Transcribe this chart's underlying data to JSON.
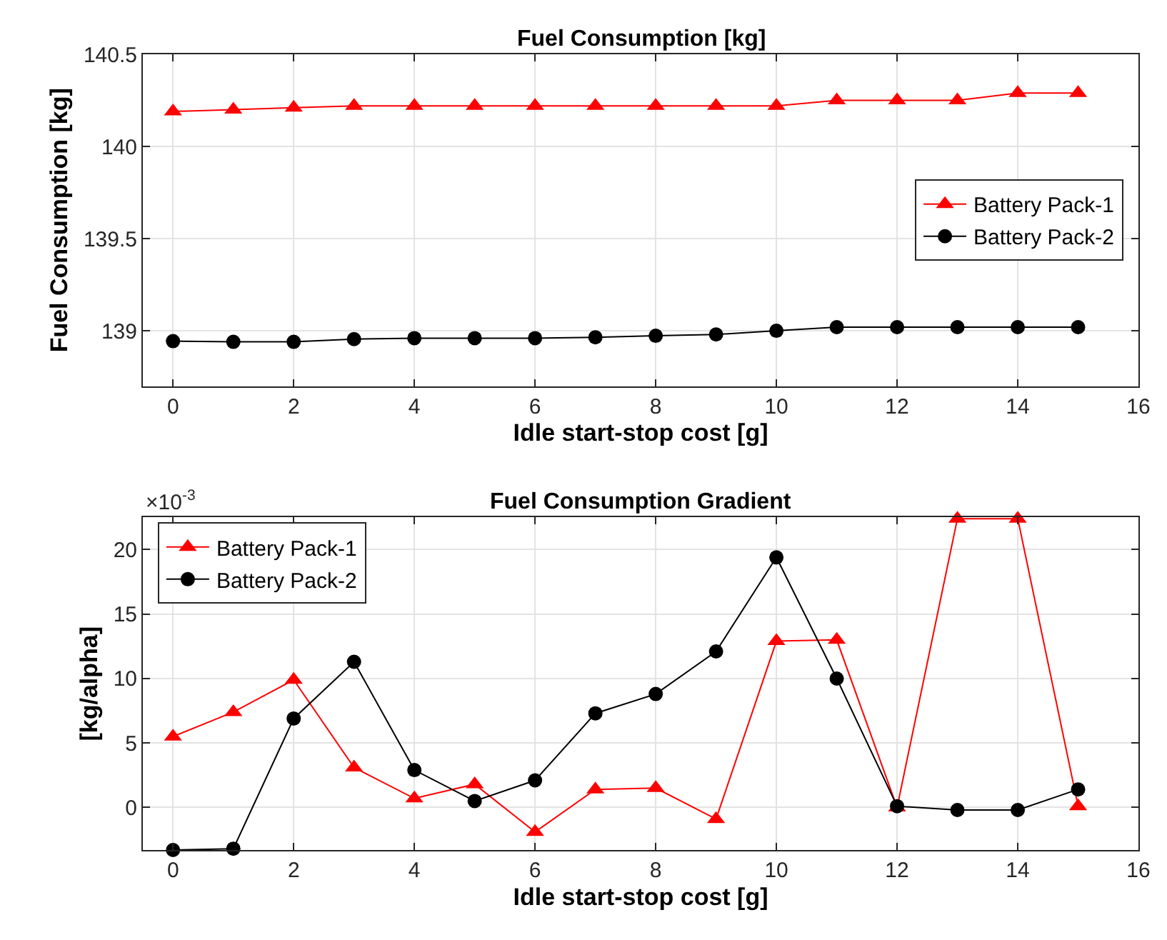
{
  "chart_data": [
    {
      "type": "line",
      "title": "Fuel Consumption [kg]",
      "xlabel": "Idle start-stop cost [g]",
      "ylabel": "Fuel Consumption [kg]",
      "x": [
        0,
        1,
        2,
        3,
        4,
        5,
        6,
        7,
        8,
        9,
        10,
        11,
        12,
        13,
        14,
        15
      ],
      "xlim": [
        -0.5,
        16
      ],
      "xticks": [
        0,
        2,
        4,
        6,
        8,
        10,
        12,
        14,
        16
      ],
      "ylim": [
        138.7,
        140.5
      ],
      "yticks": [
        139,
        139.5,
        140,
        140.5
      ],
      "grid": true,
      "legend": "right",
      "line_style": "solid",
      "series": [
        {
          "name": "Battery Pack-1",
          "color": "#ff0000",
          "marker": "triangle",
          "values": [
            140.19,
            140.2,
            140.21,
            140.22,
            140.22,
            140.22,
            140.22,
            140.22,
            140.22,
            140.22,
            140.22,
            140.25,
            140.25,
            140.25,
            140.29,
            140.29
          ]
        },
        {
          "name": "Battery Pack-2",
          "color": "#000000",
          "marker": "circle",
          "values": [
            138.944,
            138.94,
            138.94,
            138.955,
            138.96,
            138.96,
            138.96,
            138.965,
            138.973,
            138.98,
            139.0,
            139.02,
            139.02,
            139.02,
            139.02,
            139.02
          ]
        }
      ]
    },
    {
      "type": "line",
      "title": "Fuel Consumption Gradient",
      "xlabel": "Idle start-stop cost [g]",
      "ylabel": "[kg/alpha]",
      "annotations": [
        "×10$^{-3}$"
      ],
      "x": [
        0,
        1,
        2,
        3,
        4,
        5,
        6,
        7,
        8,
        9,
        10,
        11,
        12,
        13,
        14,
        15
      ],
      "xlim": [
        -0.5,
        16
      ],
      "xticks": [
        0,
        2,
        4,
        6,
        8,
        10,
        12,
        14,
        16
      ],
      "ylim": [
        -3.3,
        22.5
      ],
      "yticks": [
        0,
        5,
        10,
        15,
        20
      ],
      "grid": true,
      "legend": "top left",
      "line_style": "solid",
      "series": [
        {
          "name": "Battery Pack-1",
          "color": "#ff0000",
          "marker": "triangle",
          "values": [
            5.5,
            7.4,
            9.9,
            3.1,
            0.7,
            1.8,
            -1.9,
            1.4,
            1.5,
            -0.9,
            12.9,
            13.0,
            0.0,
            22.4,
            22.4,
            0.1
          ]
        },
        {
          "name": "Battery Pack-2",
          "color": "#000000",
          "marker": "circle",
          "values": [
            -3.3,
            -3.2,
            6.9,
            11.3,
            2.9,
            0.5,
            2.1,
            7.3,
            8.8,
            12.1,
            19.4,
            10.0,
            0.1,
            -0.2,
            -0.2,
            1.4
          ]
        }
      ]
    }
  ]
}
